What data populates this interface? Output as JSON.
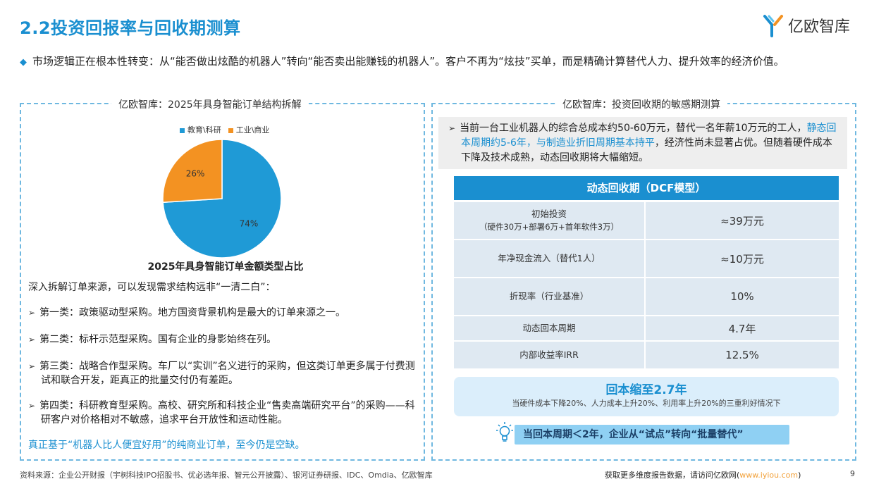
{
  "header": {
    "title": "2.2投资回报率与回收期测算",
    "logo_text": "亿欧智库"
  },
  "intro": {
    "text": "市场逻辑正在根本性转变：从“能否做出炫酷的机器人”转向“能否卖出能赚钱的机器人”。客户不再为“炫技”买单，而是精确计算替代人力、提升效率的经济价值。"
  },
  "left_panel": {
    "title": "亿欧智库：2025年具身智能订单结构拆解",
    "chart_caption": "2025年具身智能订单金额类型占比",
    "intro_line": "深入拆解订单来源，可以发现需求结构远非“一清二白”：",
    "items": [
      "第一类：政策驱动型采购。地方国资背景机构是最大的订单来源之一。",
      "第二类：标杆示范型采购。国有企业的身影始终在列。",
      "第三类：战略合作型采购。车厂以“实训”名义进行的采购，但这类订单更多属于付费测试和联合开发，距真正的批量交付仍有差距。",
      "第四类：科研教育型采购。高校、研究所和科技企业“售卖高端研究平台”的采购——科研客户对价格相对不敏感，追求平台开放性和运动性能。"
    ],
    "conclusion": "真正基于“机器人比人便宜好用”的纯商业订单，至今仍是空缺。"
  },
  "chart_data": {
    "type": "pie",
    "title": "2025年具身智能订单金额类型占比",
    "categories": [
      "教育\\科研",
      "工业\\商业"
    ],
    "values": [
      74,
      26
    ],
    "labels": [
      "74%",
      "26%"
    ],
    "colors": [
      "#1f9ad6",
      "#f39222"
    ],
    "legend": "top"
  },
  "right_panel": {
    "title": "亿欧智库：投资回收期的敏感期测算",
    "box_part1": "当前一台工业机器人的综合总成本约50-60万元，替代一名年薪10万元的工人，",
    "box_highlight": "静态回本周期约5-6年，与制造业折旧周期基本持平",
    "box_part2": "，经济性尚未显著占优。但随着硬件成本下降及技术成熟，动态回收期将大幅缩短。",
    "table_title": "动态回收期（DCF模型）",
    "rows": [
      {
        "key": "初始投资",
        "sub": "（硬件30万+部署6万+首年软件3万）",
        "value": "≈39万元"
      },
      {
        "key": "年净现金流入（替代1人）",
        "sub": "",
        "value": "≈10万元"
      },
      {
        "key": "折现率（行业基准）",
        "sub": "",
        "value": "10%"
      },
      {
        "key": "动态回本周期",
        "sub": "",
        "value": "4.7年"
      },
      {
        "key": "内部收益率IRR",
        "sub": "",
        "value": "12.5%"
      }
    ],
    "summary_big": "回本缩至2.7年",
    "summary_small": "当硬件成本下降20%、人力成本上升20%、利用率上升20%的三重利好情况下",
    "callout": "当回本周期＜2年，企业从“试点”转向“批量替代”"
  },
  "footer": {
    "source": "资料来源：企业公开财报（宇树科技IPO招股书、优必选年报、智元公开披露）、银河证券研报、IDC、Omdia、亿欧智库",
    "more_prefix": "获取更多维度报告数据，请访问亿欧网(",
    "more_link": "www.iyiou.com",
    "more_suffix": ")",
    "page": "9"
  },
  "colors": {
    "accent": "#1a8fd0",
    "pie_blue": "#1f9ad6",
    "pie_orange": "#f39222",
    "link_orange": "#f2a23c"
  }
}
